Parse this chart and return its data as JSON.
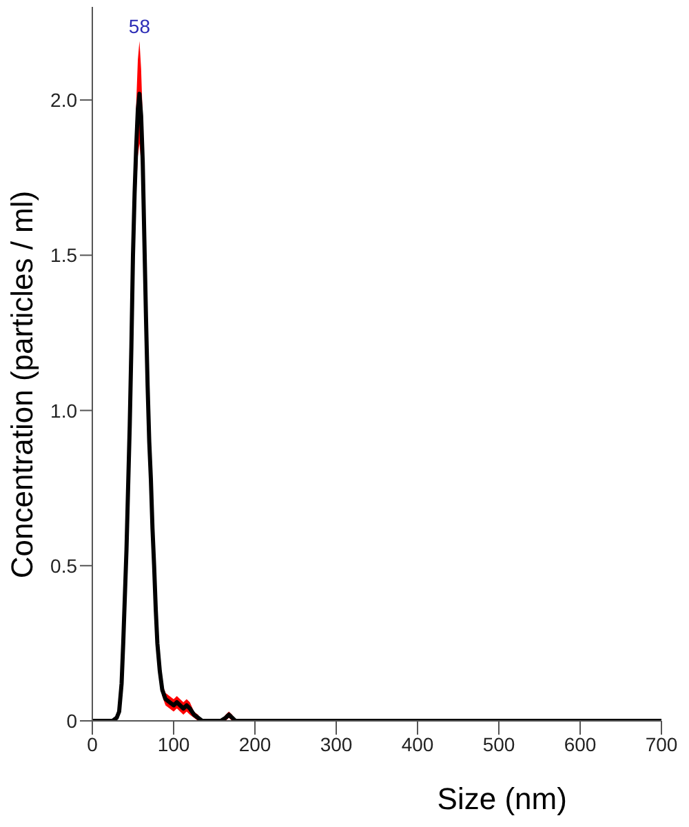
{
  "chart_data": {
    "type": "line",
    "xlabel": "Size (nm)",
    "ylabel": "Concentration (particles / ml)",
    "x": [
      0,
      10,
      20,
      25,
      30,
      33,
      36,
      38,
      40,
      42,
      44,
      46,
      48,
      50,
      52,
      54,
      56,
      58,
      60,
      62,
      64,
      66,
      68,
      70,
      72,
      74,
      76,
      78,
      80,
      83,
      86,
      90,
      95,
      100,
      104,
      108,
      112,
      116,
      120,
      125,
      130,
      135,
      140,
      150,
      158,
      164,
      168,
      172,
      176,
      180,
      200,
      250,
      300,
      400,
      500,
      600,
      700
    ],
    "series": [
      {
        "color": "#000000",
        "values": [
          0,
          0,
          0,
          0,
          0.01,
          0.03,
          0.12,
          0.25,
          0.4,
          0.55,
          0.75,
          0.95,
          1.2,
          1.5,
          1.7,
          1.85,
          1.97,
          2.02,
          1.95,
          1.8,
          1.55,
          1.3,
          1.08,
          0.9,
          0.78,
          0.62,
          0.5,
          0.36,
          0.25,
          0.16,
          0.1,
          0.07,
          0.06,
          0.05,
          0.06,
          0.05,
          0.04,
          0.05,
          0.04,
          0.02,
          0.01,
          0,
          0,
          0,
          0,
          0.01,
          0.02,
          0.01,
          0,
          0,
          0,
          0,
          0,
          0,
          0,
          0,
          0
        ],
        "upper": [
          0,
          0,
          0,
          0,
          0.01,
          0.04,
          0.14,
          0.28,
          0.44,
          0.6,
          0.81,
          1.02,
          1.28,
          1.6,
          1.82,
          1.99,
          2.13,
          2.19,
          2.1,
          1.94,
          1.67,
          1.4,
          1.16,
          0.97,
          0.84,
          0.67,
          0.54,
          0.39,
          0.28,
          0.18,
          0.12,
          0.09,
          0.08,
          0.07,
          0.08,
          0.07,
          0.06,
          0.07,
          0.06,
          0.03,
          0.02,
          0,
          0,
          0,
          0,
          0.02,
          0.03,
          0.02,
          0,
          0,
          0,
          0,
          0,
          0,
          0,
          0,
          0
        ],
        "lower": [
          0,
          0,
          0,
          0,
          0.01,
          0.02,
          0.1,
          0.22,
          0.36,
          0.5,
          0.69,
          0.88,
          1.12,
          1.4,
          1.58,
          1.71,
          1.82,
          1.86,
          1.8,
          1.66,
          1.43,
          1.2,
          1,
          0.83,
          0.72,
          0.57,
          0.46,
          0.33,
          0.22,
          0.14,
          0.08,
          0.05,
          0.04,
          0.03,
          0.04,
          0.03,
          0.02,
          0.03,
          0.02,
          0.01,
          0,
          0,
          0,
          0,
          0,
          0,
          0.01,
          0,
          0,
          0,
          0,
          0,
          0,
          0,
          0,
          0,
          0
        ]
      }
    ],
    "xlim": [
      0,
      700
    ],
    "xticks": [
      0,
      100,
      200,
      300,
      400,
      500,
      600,
      700
    ],
    "ylim": [
      0,
      2.3
    ],
    "yticks": [
      0,
      0.5,
      {
        "value": 1,
        "label": "1.0"
      },
      1.5,
      {
        "value": 2,
        "label": "2.0"
      }
    ],
    "annotations": [
      {
        "text": "58",
        "x": 58,
        "y": 2.19
      }
    ],
    "marker": "none"
  }
}
